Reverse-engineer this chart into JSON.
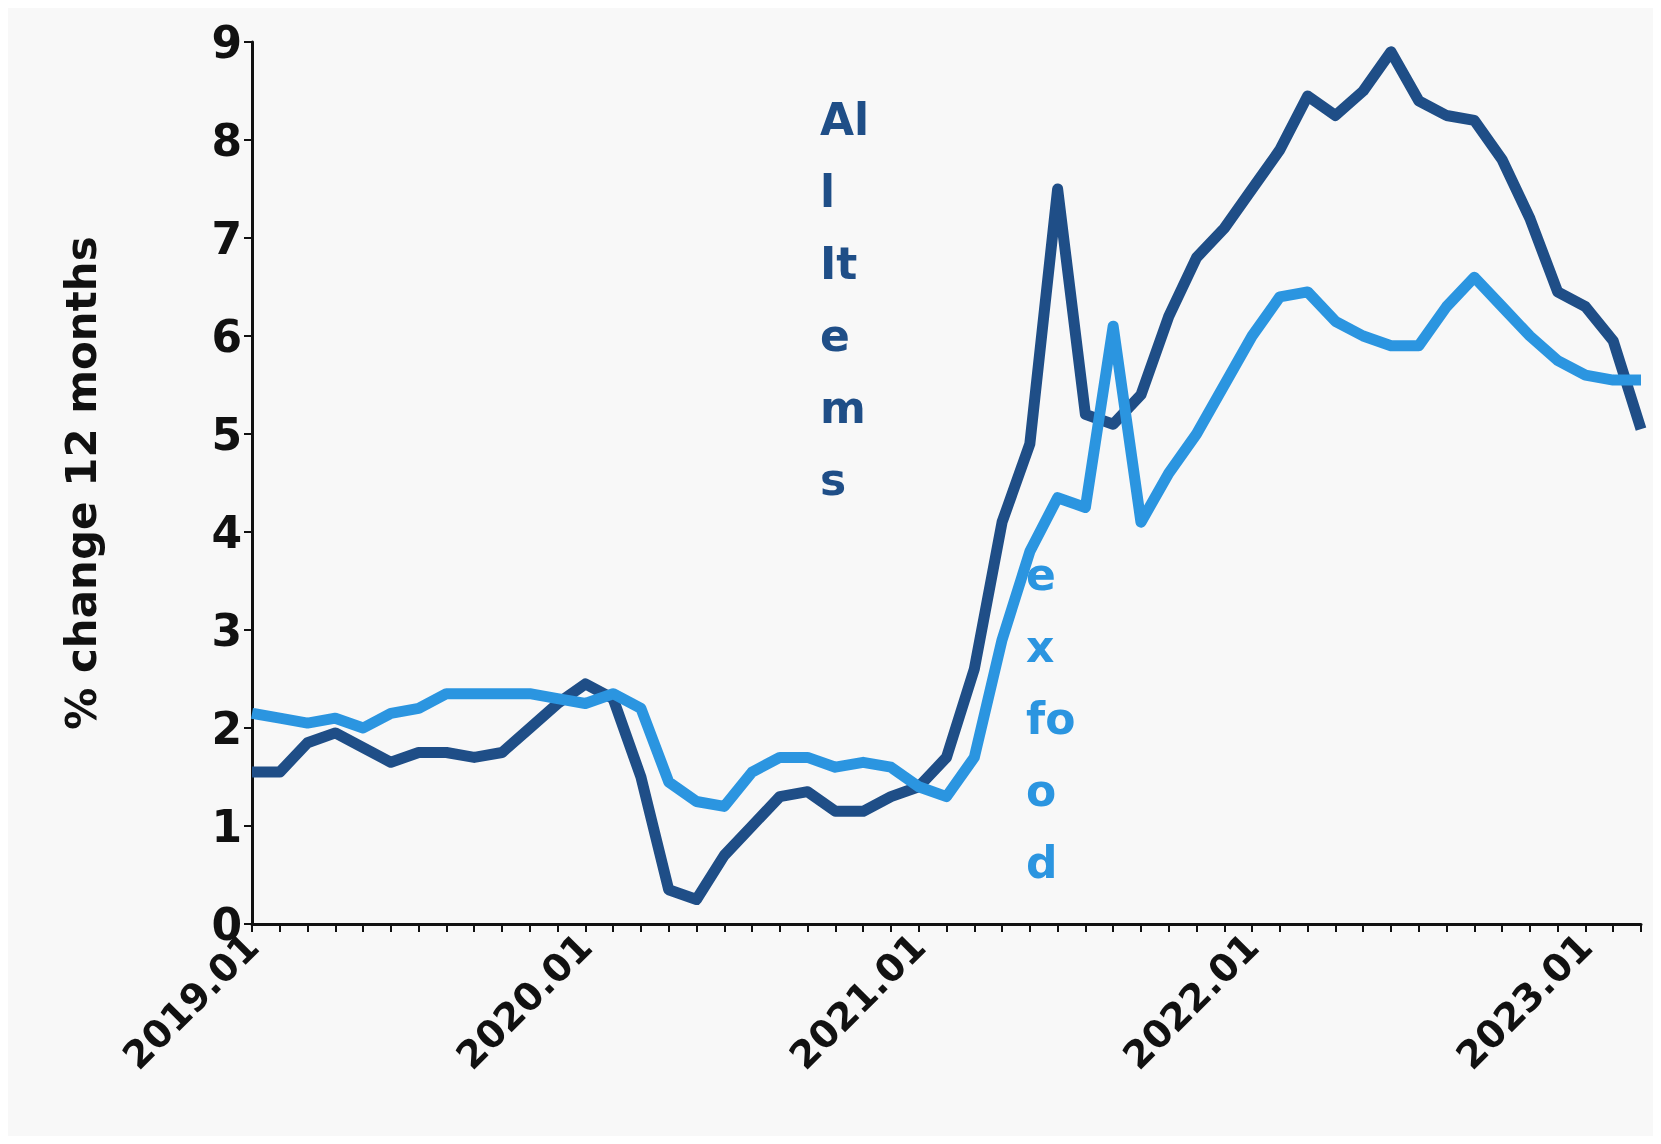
{
  "chart_data": {
    "type": "line",
    "ylabel": "% change 12 months",
    "categories": [
      "2019.01",
      null,
      null,
      null,
      null,
      null,
      null,
      null,
      null,
      null,
      null,
      null,
      "2020.01",
      null,
      null,
      null,
      null,
      null,
      null,
      null,
      null,
      null,
      null,
      null,
      "2021.01",
      null,
      null,
      null,
      null,
      null,
      null,
      null,
      null,
      null,
      null,
      null,
      "2022.01",
      null,
      null,
      null,
      null,
      null,
      null,
      null,
      null,
      null,
      null,
      null,
      "2023.01",
      null,
      null
    ],
    "series": [
      {
        "name": "All Items",
        "color": "#1f4e87",
        "values": [
          1.55,
          1.55,
          1.85,
          1.95,
          1.8,
          1.65,
          1.75,
          1.75,
          1.7,
          1.75,
          2.0,
          2.25,
          2.45,
          2.3,
          1.5,
          0.35,
          0.25,
          0.7,
          1.0,
          1.3,
          1.35,
          1.15,
          1.15,
          1.3,
          1.4,
          1.7,
          2.6,
          4.1,
          4.9,
          7.5,
          5.2,
          5.1,
          5.4,
          6.2,
          6.8,
          7.1,
          7.5,
          7.9,
          8.45,
          8.25,
          8.5,
          8.9,
          8.4,
          8.25,
          8.2,
          7.8,
          7.2,
          6.45,
          6.3,
          5.95,
          5.05
        ]
      },
      {
        "name": "ex food",
        "color": "#2b95e0",
        "values": [
          2.15,
          2.1,
          2.05,
          2.1,
          2.0,
          2.15,
          2.2,
          2.35,
          2.35,
          2.35,
          2.35,
          2.3,
          2.25,
          2.35,
          2.2,
          1.45,
          1.25,
          1.2,
          1.55,
          1.7,
          1.7,
          1.6,
          1.65,
          1.6,
          1.4,
          1.3,
          1.7,
          2.9,
          3.8,
          4.35,
          4.25,
          6.1,
          4.1,
          4.6,
          5.0,
          5.5,
          6.0,
          6.4,
          6.45,
          6.15,
          6.0,
          5.9,
          5.9,
          6.3,
          6.6,
          6.3,
          6.0,
          5.75,
          5.6,
          5.55,
          5.55
        ]
      }
    ],
    "ylim": [
      0,
      9
    ],
    "yticks": [
      0,
      1,
      2,
      3,
      4,
      5,
      6,
      7,
      8,
      9
    ],
    "grid": false,
    "legend": false,
    "marker": "none",
    "line_style": "solid"
  }
}
